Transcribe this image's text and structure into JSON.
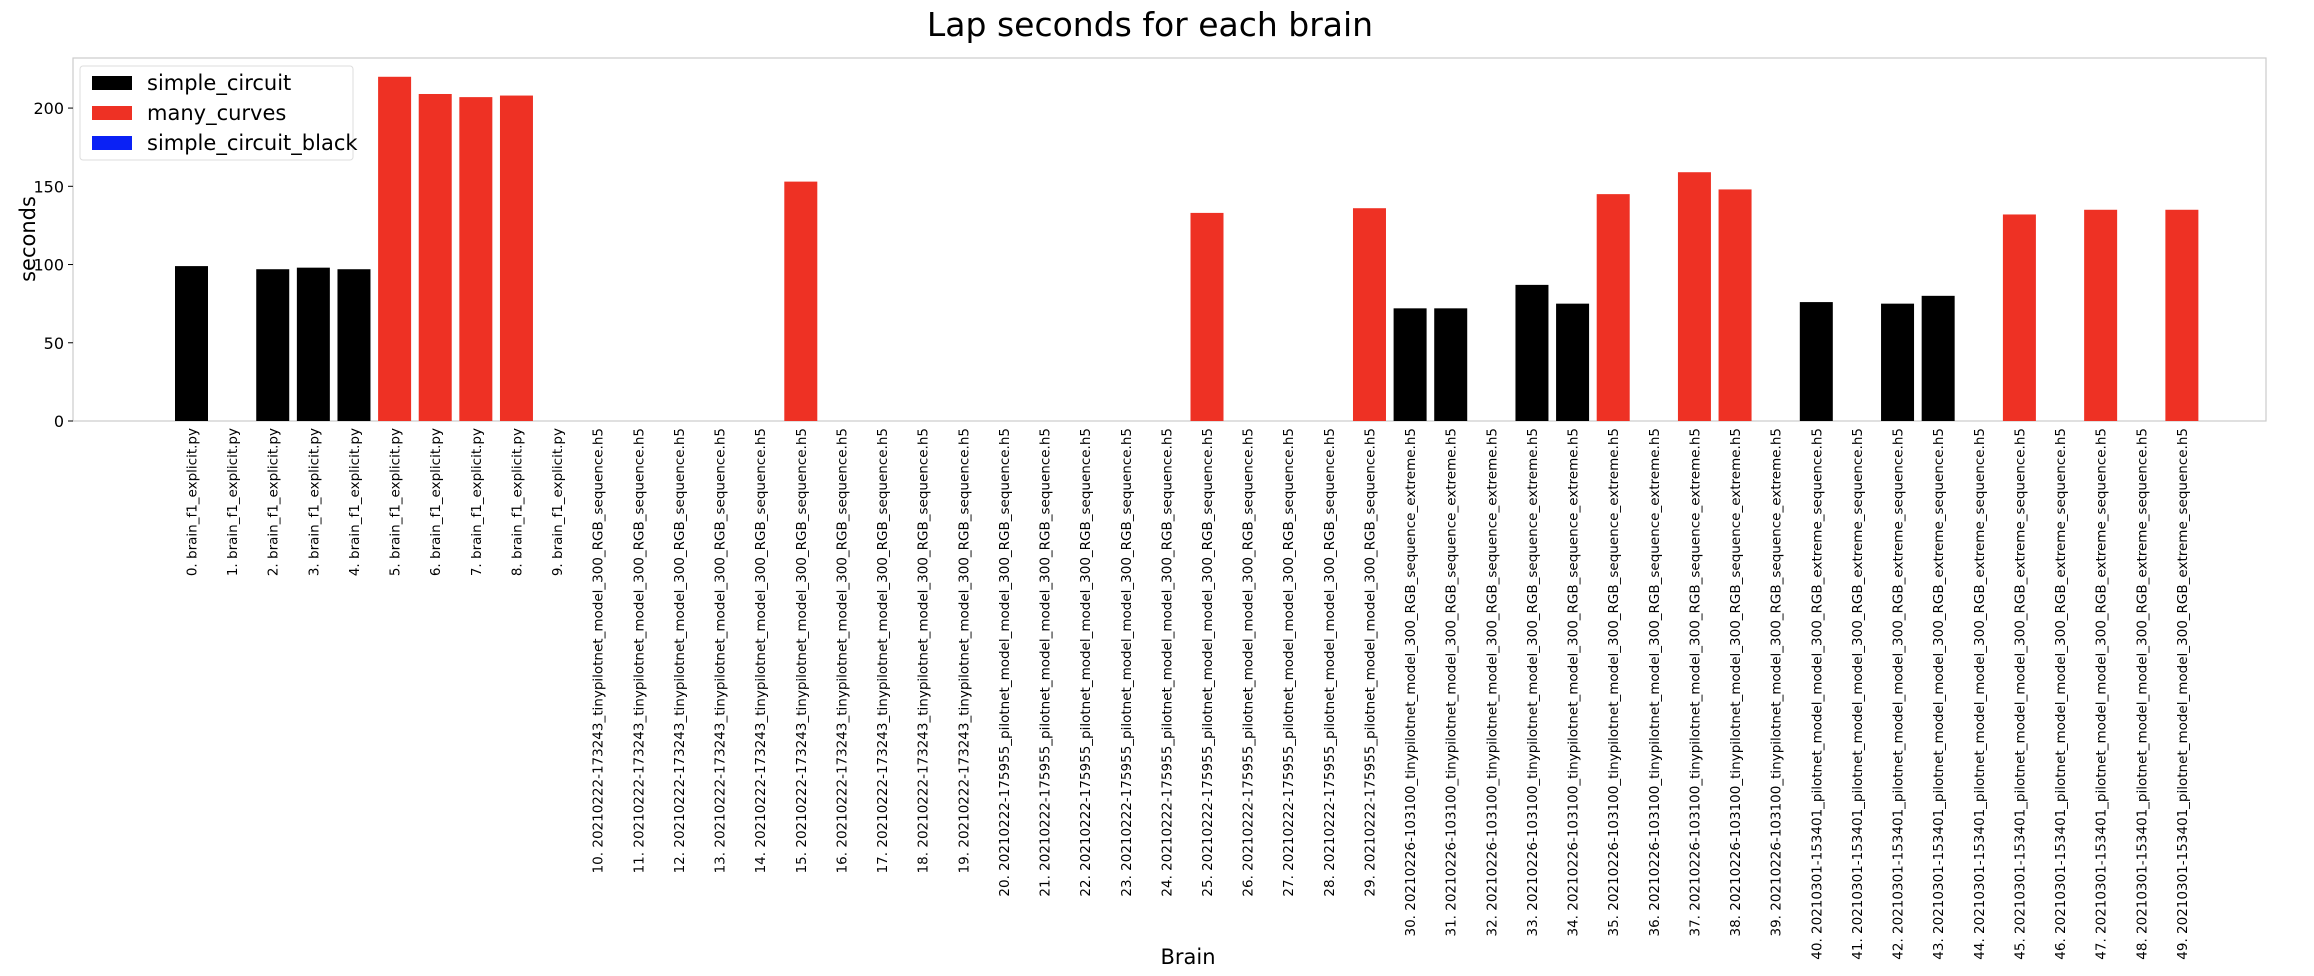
{
  "chart_data": {
    "type": "bar",
    "title": "Lap seconds for each brain",
    "xlabel": "Brain",
    "ylabel": "seconds",
    "ylim": [
      0,
      232
    ],
    "yticks": [
      0,
      50,
      100,
      150,
      200
    ],
    "grid": false,
    "legend_position": "top-left",
    "legend": [
      {
        "name": "simple_circuit",
        "color": "#000000"
      },
      {
        "name": "many_curves",
        "color": "#ee3124"
      },
      {
        "name": "simple_circuit_black",
        "color": "#0a21f5"
      }
    ],
    "categories": [
      "0. brain_f1_explicit.py",
      "1. brain_f1_explicit.py",
      "2. brain_f1_explicit.py",
      "3. brain_f1_explicit.py",
      "4. brain_f1_explicit.py",
      "5. brain_f1_explicit.py",
      "6. brain_f1_explicit.py",
      "7. brain_f1_explicit.py",
      "8. brain_f1_explicit.py",
      "9. brain_f1_explicit.py",
      "10. 20210222-173243_tinypilotnet_model_300_RGB_sequence.h5",
      "11. 20210222-173243_tinypilotnet_model_300_RGB_sequence.h5",
      "12. 20210222-173243_tinypilotnet_model_300_RGB_sequence.h5",
      "13. 20210222-173243_tinypilotnet_model_300_RGB_sequence.h5",
      "14. 20210222-173243_tinypilotnet_model_300_RGB_sequence.h5",
      "15. 20210222-173243_tinypilotnet_model_300_RGB_sequence.h5",
      "16. 20210222-173243_tinypilotnet_model_300_RGB_sequence.h5",
      "17. 20210222-173243_tinypilotnet_model_300_RGB_sequence.h5",
      "18. 20210222-173243_tinypilotnet_model_300_RGB_sequence.h5",
      "19. 20210222-173243_tinypilotnet_model_300_RGB_sequence.h5",
      "20. 20210222-175955_pilotnet_model_model_300_RGB_sequence.h5",
      "21. 20210222-175955_pilotnet_model_model_300_RGB_sequence.h5",
      "22. 20210222-175955_pilotnet_model_model_300_RGB_sequence.h5",
      "23. 20210222-175955_pilotnet_model_model_300_RGB_sequence.h5",
      "24. 20210222-175955_pilotnet_model_model_300_RGB_sequence.h5",
      "25. 20210222-175955_pilotnet_model_model_300_RGB_sequence.h5",
      "26. 20210222-175955_pilotnet_model_model_300_RGB_sequence.h5",
      "27. 20210222-175955_pilotnet_model_model_300_RGB_sequence.h5",
      "28. 20210222-175955_pilotnet_model_model_300_RGB_sequence.h5",
      "29. 20210222-175955_pilotnet_model_model_300_RGB_sequence.h5",
      "30. 20210226-103100_tinypilotnet_model_300_RGB_sequence_extreme.h5",
      "31. 20210226-103100_tinypilotnet_model_300_RGB_sequence_extreme.h5",
      "32. 20210226-103100_tinypilotnet_model_300_RGB_sequence_extreme.h5",
      "33. 20210226-103100_tinypilotnet_model_300_RGB_sequence_extreme.h5",
      "34. 20210226-103100_tinypilotnet_model_300_RGB_sequence_extreme.h5",
      "35. 20210226-103100_tinypilotnet_model_300_RGB_sequence_extreme.h5",
      "36. 20210226-103100_tinypilotnet_model_300_RGB_sequence_extreme.h5",
      "37. 20210226-103100_tinypilotnet_model_300_RGB_sequence_extreme.h5",
      "38. 20210226-103100_tinypilotnet_model_300_RGB_sequence_extreme.h5",
      "39. 20210226-103100_tinypilotnet_model_300_RGB_sequence_extreme.h5",
      "40. 20210301-153401_pilotnet_model_model_300_RGB_extreme_sequence.h5",
      "41. 20210301-153401_pilotnet_model_model_300_RGB_extreme_sequence.h5",
      "42. 20210301-153401_pilotnet_model_model_300_RGB_extreme_sequence.h5",
      "43. 20210301-153401_pilotnet_model_model_300_RGB_extreme_sequence.h5",
      "44. 20210301-153401_pilotnet_model_model_300_RGB_extreme_sequence.h5",
      "45. 20210301-153401_pilotnet_model_model_300_RGB_extreme_sequence.h5",
      "46. 20210301-153401_pilotnet_model_model_300_RGB_extreme_sequence.h5",
      "47. 20210301-153401_pilotnet_model_model_300_RGB_extreme_sequence.h5",
      "48. 20210301-153401_pilotnet_model_model_300_RGB_extreme_sequence.h5",
      "49. 20210301-153401_pilotnet_model_model_300_RGB_extreme_sequence.h5"
    ],
    "values": [
      99,
      null,
      97,
      98,
      97,
      220,
      209,
      207,
      208,
      null,
      null,
      null,
      null,
      null,
      null,
      153,
      null,
      null,
      null,
      null,
      null,
      null,
      null,
      null,
      null,
      133,
      null,
      null,
      null,
      136,
      72,
      72,
      null,
      87,
      75,
      145,
      null,
      159,
      148,
      null,
      76,
      null,
      75,
      80,
      null,
      132,
      null,
      135,
      null,
      135
    ],
    "bar_series": [
      0,
      null,
      0,
      0,
      0,
      1,
      1,
      1,
      1,
      null,
      null,
      null,
      null,
      null,
      null,
      1,
      null,
      null,
      null,
      null,
      null,
      null,
      null,
      null,
      null,
      1,
      null,
      null,
      null,
      1,
      0,
      0,
      null,
      0,
      0,
      1,
      null,
      1,
      1,
      null,
      0,
      null,
      0,
      0,
      null,
      1,
      null,
      1,
      null,
      1
    ]
  }
}
